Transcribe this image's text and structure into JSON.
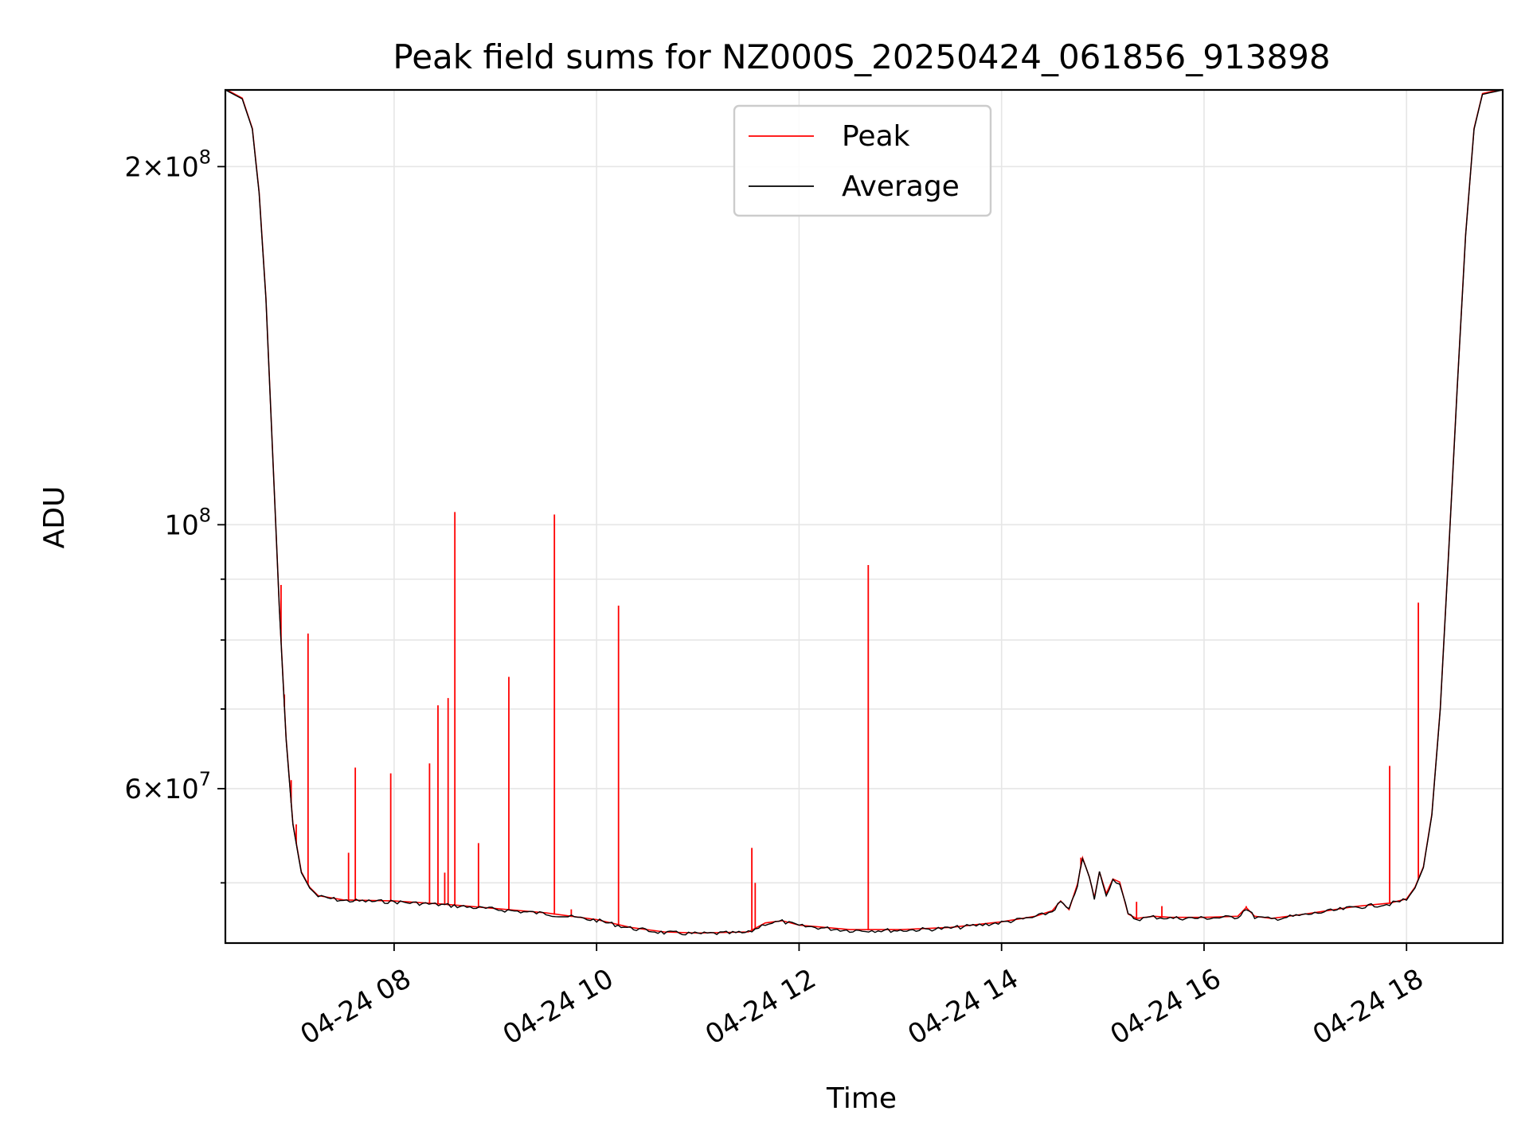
{
  "chart_data": {
    "type": "line",
    "title": "Peak field sums for NZ000S_20250424_061856_913898",
    "xlabel": "Time",
    "ylabel": "ADU",
    "yscale": "log",
    "grid": true,
    "legend_position": "top-center",
    "xlim": [
      "2025-04-24 06:20",
      "2025-04-24 18:57"
    ],
    "ylim": [
      44500000,
      232000000
    ],
    "x_ticks": [
      {
        "value": "2025-04-24 08:00",
        "label": "04-24 08"
      },
      {
        "value": "2025-04-24 10:00",
        "label": "04-24 10"
      },
      {
        "value": "2025-04-24 12:00",
        "label": "04-24 12"
      },
      {
        "value": "2025-04-24 14:00",
        "label": "04-24 14"
      },
      {
        "value": "2025-04-24 16:00",
        "label": "04-24 16"
      },
      {
        "value": "2025-04-24 18:00",
        "label": "04-24 18"
      }
    ],
    "y_major_ticks": [
      {
        "value": 60000000,
        "mantissa": "6",
        "exponent": "7"
      },
      {
        "value": 100000000,
        "mantissa": "",
        "exponent": "8"
      },
      {
        "value": 200000000,
        "mantissa": "2",
        "exponent": "8"
      }
    ],
    "y_minor_ticks": [
      50000000,
      70000000,
      80000000,
      90000000,
      300000000
    ],
    "series": [
      {
        "name": "Average",
        "color": "#000000",
        "points": [
          [
            "2025-04-24 06:20",
            232000000
          ],
          [
            "2025-04-24 06:30",
            228000000
          ],
          [
            "2025-04-24 06:36",
            215000000
          ],
          [
            "2025-04-24 06:40",
            190000000
          ],
          [
            "2025-04-24 06:44",
            155000000
          ],
          [
            "2025-04-24 06:48",
            115000000
          ],
          [
            "2025-04-24 06:52",
            85000000
          ],
          [
            "2025-04-24 06:56",
            66000000
          ],
          [
            "2025-04-24 07:00",
            56000000
          ],
          [
            "2025-04-24 07:05",
            51000000
          ],
          [
            "2025-04-24 07:10",
            49500000
          ],
          [
            "2025-04-24 07:15",
            48700000
          ],
          [
            "2025-04-24 07:30",
            48300000
          ],
          [
            "2025-04-24 08:00",
            48200000
          ],
          [
            "2025-04-24 08:30",
            47900000
          ],
          [
            "2025-04-24 09:00",
            47500000
          ],
          [
            "2025-04-24 09:30",
            47100000
          ],
          [
            "2025-04-24 10:00",
            46500000
          ],
          [
            "2025-04-24 10:20",
            45800000
          ],
          [
            "2025-04-24 10:40",
            45400000
          ],
          [
            "2025-04-24 11:00",
            45300000
          ],
          [
            "2025-04-24 11:30",
            45400000
          ],
          [
            "2025-04-24 11:40",
            46200000
          ],
          [
            "2025-04-24 11:50",
            46400000
          ],
          [
            "2025-04-24 12:00",
            46000000
          ],
          [
            "2025-04-24 12:30",
            45600000
          ],
          [
            "2025-04-24 13:00",
            45600000
          ],
          [
            "2025-04-24 13:30",
            45800000
          ],
          [
            "2025-04-24 14:00",
            46300000
          ],
          [
            "2025-04-24 14:20",
            46800000
          ],
          [
            "2025-04-24 14:30",
            47300000
          ],
          [
            "2025-04-24 14:35",
            48200000
          ],
          [
            "2025-04-24 14:40",
            47400000
          ],
          [
            "2025-04-24 14:45",
            49800000
          ],
          [
            "2025-04-24 14:48",
            52400000
          ],
          [
            "2025-04-24 14:52",
            50500000
          ],
          [
            "2025-04-24 14:55",
            48500000
          ],
          [
            "2025-04-24 14:58",
            51000000
          ],
          [
            "2025-04-24 15:02",
            48900000
          ],
          [
            "2025-04-24 15:06",
            50300000
          ],
          [
            "2025-04-24 15:10",
            50000000
          ],
          [
            "2025-04-24 15:15",
            47000000
          ],
          [
            "2025-04-24 15:20",
            46600000
          ],
          [
            "2025-04-24 15:30",
            46800000
          ],
          [
            "2025-04-24 15:40",
            46700000
          ],
          [
            "2025-04-24 16:00",
            46700000
          ],
          [
            "2025-04-24 16:20",
            46800000
          ],
          [
            "2025-04-24 16:25",
            47600000
          ],
          [
            "2025-04-24 16:30",
            46800000
          ],
          [
            "2025-04-24 16:40",
            46600000
          ],
          [
            "2025-04-24 17:00",
            47000000
          ],
          [
            "2025-04-24 17:30",
            47700000
          ],
          [
            "2025-04-24 17:50",
            48000000
          ],
          [
            "2025-04-24 18:00",
            48400000
          ],
          [
            "2025-04-24 18:05",
            49500000
          ],
          [
            "2025-04-24 18:10",
            51500000
          ],
          [
            "2025-04-24 18:15",
            57000000
          ],
          [
            "2025-04-24 18:20",
            70000000
          ],
          [
            "2025-04-24 18:25",
            95000000
          ],
          [
            "2025-04-24 18:30",
            130000000
          ],
          [
            "2025-04-24 18:35",
            175000000
          ],
          [
            "2025-04-24 18:40",
            215000000
          ],
          [
            "2025-04-24 18:45",
            230000000
          ],
          [
            "2025-04-24 18:57",
            232000000
          ]
        ]
      },
      {
        "name": "Peak",
        "color": "#ff0000",
        "spikes": [
          [
            "2025-04-24 06:53",
            89000000
          ],
          [
            "2025-04-24 06:55",
            72000000
          ],
          [
            "2025-04-24 06:59",
            61000000
          ],
          [
            "2025-04-24 07:02",
            56000000
          ],
          [
            "2025-04-24 07:09",
            81000000
          ],
          [
            "2025-04-24 07:33",
            53000000
          ],
          [
            "2025-04-24 07:37",
            62500000
          ],
          [
            "2025-04-24 07:58",
            61800000
          ],
          [
            "2025-04-24 08:21",
            63000000
          ],
          [
            "2025-04-24 08:26",
            70500000
          ],
          [
            "2025-04-24 08:30",
            51000000
          ],
          [
            "2025-04-24 08:32",
            71500000
          ],
          [
            "2025-04-24 08:36",
            102500000
          ],
          [
            "2025-04-24 08:50",
            54000000
          ],
          [
            "2025-04-24 09:08",
            74500000
          ],
          [
            "2025-04-24 09:35",
            102000000
          ],
          [
            "2025-04-24 09:45",
            47500000
          ],
          [
            "2025-04-24 10:13",
            85500000
          ],
          [
            "2025-04-24 11:32",
            53500000
          ],
          [
            "2025-04-24 11:34",
            50000000
          ],
          [
            "2025-04-24 12:41",
            92500000
          ],
          [
            "2025-04-24 14:47",
            52500000
          ],
          [
            "2025-04-24 15:20",
            48200000
          ],
          [
            "2025-04-24 15:35",
            47800000
          ],
          [
            "2025-04-24 16:25",
            47800000
          ],
          [
            "2025-04-24 17:50",
            62700000
          ],
          [
            "2025-04-24 18:07",
            86000000
          ]
        ]
      }
    ]
  }
}
